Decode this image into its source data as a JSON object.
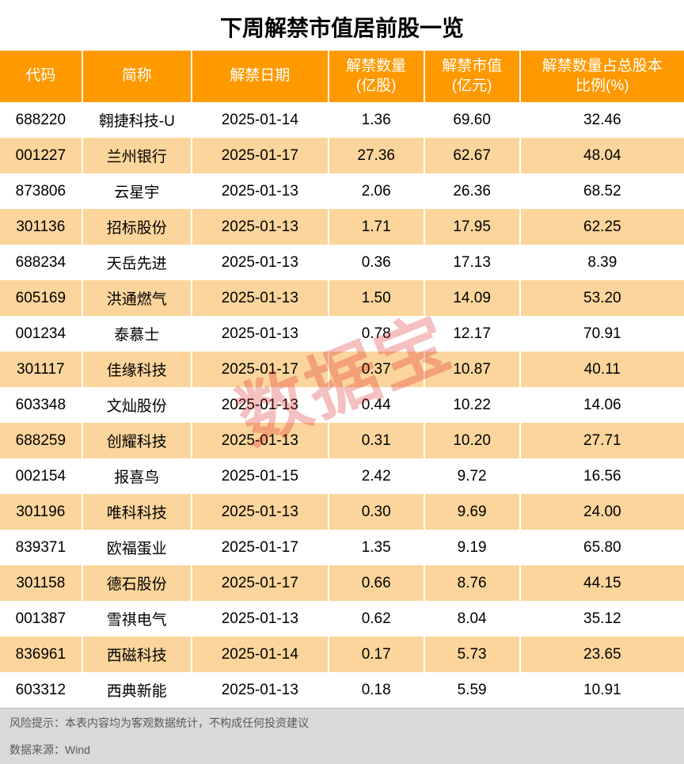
{
  "title": "下周解禁市值居前股一览",
  "watermark": "数据宝",
  "colors": {
    "header_bg": "#ff9900",
    "header_text": "#ffffff",
    "row_odd_bg": "#ffffff",
    "row_even_bg": "#fbd59b",
    "footer_bg": "#d9d9d9",
    "footer_text": "#5a5a5a",
    "title_color": "#000000",
    "cell_text": "#000000",
    "watermark_color": "rgba(220,30,30,0.28)"
  },
  "columns": [
    {
      "label": "代码",
      "width": "12%"
    },
    {
      "label": "简称",
      "width": "16%"
    },
    {
      "label": "解禁日期",
      "width": "20%"
    },
    {
      "label": "解禁数量\n(亿股)",
      "width": "14%"
    },
    {
      "label": "解禁市值\n(亿元)",
      "width": "14%"
    },
    {
      "label": "解禁数量占总股本\n比例(%)",
      "width": "24%"
    }
  ],
  "rows": [
    [
      "688220",
      "翱捷科技-U",
      "2025-01-14",
      "1.36",
      "69.60",
      "32.46"
    ],
    [
      "001227",
      "兰州银行",
      "2025-01-17",
      "27.36",
      "62.67",
      "48.04"
    ],
    [
      "873806",
      "云星宇",
      "2025-01-13",
      "2.06",
      "26.36",
      "68.52"
    ],
    [
      "301136",
      "招标股份",
      "2025-01-13",
      "1.71",
      "17.95",
      "62.25"
    ],
    [
      "688234",
      "天岳先进",
      "2025-01-13",
      "0.36",
      "17.13",
      "8.39"
    ],
    [
      "605169",
      "洪通燃气",
      "2025-01-13",
      "1.50",
      "14.09",
      "53.20"
    ],
    [
      "001234",
      "泰慕士",
      "2025-01-13",
      "0.78",
      "12.17",
      "70.91"
    ],
    [
      "301117",
      "佳缘科技",
      "2025-01-17",
      "0.37",
      "10.87",
      "40.11"
    ],
    [
      "603348",
      "文灿股份",
      "2025-01-13",
      "0.44",
      "10.22",
      "14.06"
    ],
    [
      "688259",
      "创耀科技",
      "2025-01-13",
      "0.31",
      "10.20",
      "27.71"
    ],
    [
      "002154",
      "报喜鸟",
      "2025-01-15",
      "2.42",
      "9.72",
      "16.56"
    ],
    [
      "301196",
      "唯科科技",
      "2025-01-13",
      "0.30",
      "9.69",
      "24.00"
    ],
    [
      "839371",
      "欧福蛋业",
      "2025-01-17",
      "1.35",
      "9.19",
      "65.80"
    ],
    [
      "301158",
      "德石股份",
      "2025-01-17",
      "0.66",
      "8.76",
      "44.15"
    ],
    [
      "001387",
      "雪祺电气",
      "2025-01-13",
      "0.62",
      "8.04",
      "35.12"
    ],
    [
      "836961",
      "西磁科技",
      "2025-01-14",
      "0.17",
      "5.73",
      "23.65"
    ],
    [
      "603312",
      "西典新能",
      "2025-01-13",
      "0.18",
      "5.59",
      "10.91"
    ]
  ],
  "footer": {
    "risk": "风险提示：本表内容均为客观数据统计，不构成任何投资建议",
    "source": "数据来源：Wind"
  },
  "typography": {
    "title_fontsize": 28,
    "header_fontsize": 19,
    "cell_fontsize": 19,
    "footer_fontsize": 14
  }
}
